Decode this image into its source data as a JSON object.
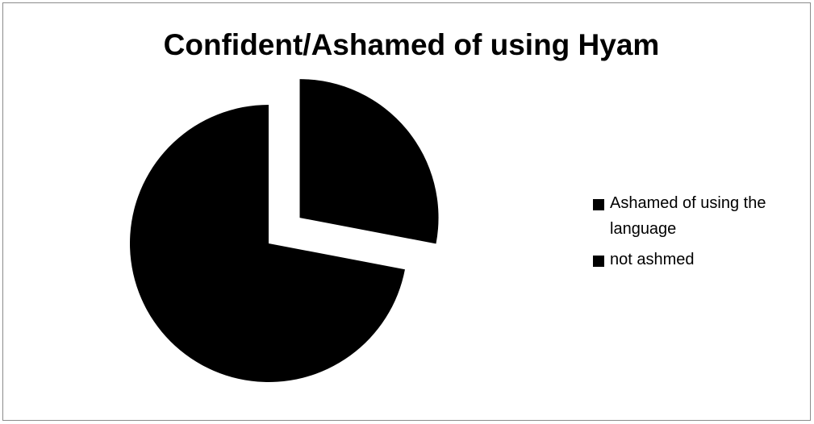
{
  "chart_data": {
    "type": "pie",
    "title": "Confident/Ashamed of using Hyam",
    "slices": [
      {
        "label": "Ashamed of using the language",
        "value": 28,
        "color": "#000000",
        "exploded": true
      },
      {
        "label": "not ashmed",
        "value": 72,
        "color": "#000000",
        "exploded": false
      }
    ],
    "legend_position": "right"
  }
}
